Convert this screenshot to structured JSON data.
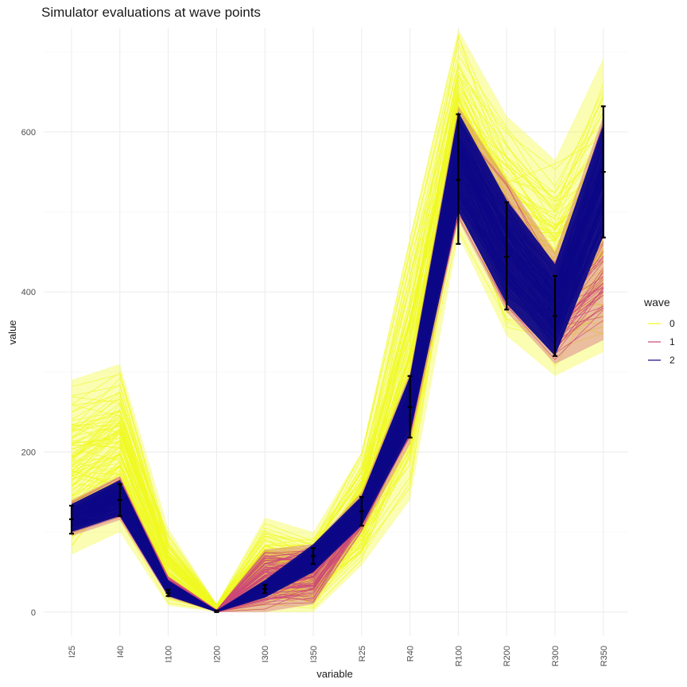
{
  "chart_data": {
    "type": "line",
    "title": "Simulator evaluations at wave points",
    "xlabel": "variable",
    "ylabel": "value",
    "categories": [
      "I25",
      "I40",
      "I100",
      "I200",
      "I300",
      "I350",
      "R25",
      "R40",
      "R100",
      "R200",
      "R300",
      "R350"
    ],
    "ylim": [
      -30,
      730
    ],
    "yticks": [
      0,
      200,
      400,
      600
    ],
    "grid": true,
    "legend": {
      "title": "wave",
      "position": "right",
      "entries": [
        {
          "label": "0",
          "color": "#f0f921"
        },
        {
          "label": "1",
          "color": "#cc4778"
        },
        {
          "label": "2",
          "color": "#0d0887"
        }
      ]
    },
    "series": [
      {
        "name": "0",
        "color": "#f0f921",
        "lower": [
          72,
          100,
          8,
          0,
          0,
          0,
          58,
          140,
          470,
          345,
          295,
          325
        ],
        "upper": [
          290,
          310,
          105,
          10,
          118,
          100,
          200,
          470,
          728,
          620,
          565,
          692
        ]
      },
      {
        "name": "1",
        "color": "#cc4778",
        "lower": [
          95,
          115,
          18,
          0,
          0,
          10,
          100,
          210,
          490,
          375,
          310,
          340
        ],
        "upper": [
          140,
          170,
          45,
          3,
          78,
          85,
          150,
          300,
          632,
          540,
          450,
          620
        ]
      },
      {
        "name": "2",
        "color": "#0d0887",
        "lower": [
          100,
          120,
          20,
          0,
          18,
          50,
          108,
          222,
          500,
          385,
          320,
          470
        ],
        "upper": [
          135,
          165,
          40,
          2,
          40,
          85,
          145,
          295,
          625,
          515,
          435,
          610
        ]
      }
    ],
    "targets": [
      {
        "category": "I25",
        "val": 116,
        "low": 98,
        "high": 133
      },
      {
        "category": "I40",
        "val": 140,
        "low": 120,
        "high": 160
      },
      {
        "category": "I100",
        "val": 24,
        "low": 20,
        "high": 28
      },
      {
        "category": "I200",
        "val": 1,
        "low": 0,
        "high": 2
      },
      {
        "category": "I300",
        "val": 29,
        "low": 24,
        "high": 34
      },
      {
        "category": "I350",
        "val": 70,
        "low": 60,
        "high": 80
      },
      {
        "category": "R25",
        "val": 126,
        "low": 108,
        "high": 144
      },
      {
        "category": "R40",
        "val": 256,
        "low": 218,
        "high": 295
      },
      {
        "category": "R100",
        "val": 540,
        "low": 460,
        "high": 622
      },
      {
        "category": "R200",
        "val": 444,
        "low": 378,
        "high": 512
      },
      {
        "category": "R300",
        "val": 370,
        "low": 320,
        "high": 420
      },
      {
        "category": "R350",
        "val": 550,
        "low": 468,
        "high": 632
      }
    ]
  }
}
